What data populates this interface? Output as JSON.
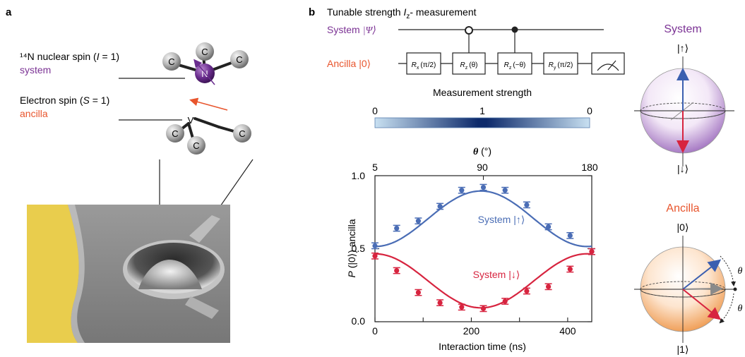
{
  "panel_a": {
    "label": "a",
    "nuclear_spin_line1": "¹⁴N nuclear spin (",
    "nuclear_spin_I": "I",
    "nuclear_spin_rest": " = 1)",
    "nuclear_spin_role": "system",
    "electron_spin_line1": "Electron spin (",
    "electron_spin_S": "S",
    "electron_spin_rest": " = 1)",
    "electron_spin_role": "ancilla",
    "atom_carbon": "C",
    "atom_nitrogen": "N",
    "vacancy": "V"
  },
  "panel_b": {
    "label": "b",
    "title_pre": "Tunable strength ",
    "title_I": "I",
    "title_z": "z",
    "title_post": "- measurement",
    "system_label": "System",
    "system_ket": "|Ψ⟩",
    "ancilla_label": "Ancilla",
    "ancilla_ket": "|0⟩",
    "gates": [
      {
        "R": "R",
        "sub": "x",
        "arg": "(π/2)"
      },
      {
        "R": "R",
        "sub": "z",
        "arg": "(θ)"
      },
      {
        "R": "R",
        "sub": "z",
        "arg": "(−θ)"
      },
      {
        "R": "R",
        "sub": "y",
        "arg": "(π/2)"
      }
    ],
    "strength_title": "Measurement strength",
    "strength_ticks": [
      "0",
      "1",
      "0"
    ],
    "colors": {
      "system": "#7b3294",
      "ancilla": "#e8552d",
      "up_series": "#4a6db5",
      "down_series": "#d7243f",
      "gradient_light": "#b3d4ec",
      "gradient_dark": "#0d2a6b"
    }
  },
  "chart_data": {
    "type": "scatter",
    "xlabel": "Interaction time (ns)",
    "ylabel_pre": "P",
    "ylabel_post": " (|0⟩) ancilla",
    "top_axis_label": "θ",
    "top_axis_unit": " (°)",
    "top_ticks": [
      "5",
      "90",
      "180"
    ],
    "xlim": [
      0,
      450
    ],
    "ylim": [
      0,
      1
    ],
    "x_ticks": [
      0,
      200,
      400
    ],
    "y_ticks": [
      "0.0",
      "0.5",
      "1.0"
    ],
    "series": [
      {
        "name": "System |↑⟩",
        "x": [
          0,
          45,
          90,
          135,
          180,
          225,
          270,
          315,
          360,
          405,
          450
        ],
        "y": [
          0.52,
          0.64,
          0.69,
          0.79,
          0.9,
          0.92,
          0.9,
          0.8,
          0.65,
          0.59,
          0.48
        ],
        "err": 0.02
      },
      {
        "name": "System |↓⟩",
        "x": [
          0,
          45,
          90,
          135,
          180,
          225,
          270,
          315,
          360,
          405,
          450
        ],
        "y": [
          0.45,
          0.35,
          0.2,
          0.13,
          0.1,
          0.09,
          0.14,
          0.21,
          0.24,
          0.36,
          0.48
        ],
        "err": 0.02
      }
    ]
  },
  "bloch_system": {
    "title": "System",
    "top_label": "|↑⟩",
    "bottom_label": "|↓⟩"
  },
  "bloch_ancilla": {
    "title": "Ancilla",
    "top_label": "|0⟩",
    "bottom_label": "|1⟩",
    "theta": "θ"
  }
}
